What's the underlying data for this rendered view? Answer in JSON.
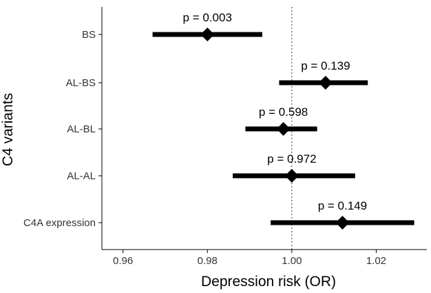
{
  "chart_data": {
    "type": "scatter",
    "subtype": "forest-plot",
    "title": "",
    "xlabel": "Depression risk (OR)",
    "ylabel": "C4 variants",
    "xlim": [
      0.955,
      1.032
    ],
    "x_ticks": [
      "0.96",
      "0.98",
      "1.00",
      "1.02"
    ],
    "reference_line": {
      "x": 1.0,
      "style": "dotted"
    },
    "grid": false,
    "categories": [
      "BS",
      "AL-BS",
      "AL-BL",
      "AL-AL",
      "C4A expression"
    ],
    "points": [
      {
        "label": "BS",
        "or": 0.98,
        "ci_low": 0.967,
        "ci_high": 0.993,
        "p": "p = 0.003"
      },
      {
        "label": "AL-BS",
        "or": 1.008,
        "ci_low": 0.997,
        "ci_high": 1.018,
        "p": "p = 0.139"
      },
      {
        "label": "AL-BL",
        "or": 0.998,
        "ci_low": 0.989,
        "ci_high": 1.006,
        "p": "p = 0.598"
      },
      {
        "label": "AL-AL",
        "or": 1.0,
        "ci_low": 0.986,
        "ci_high": 1.015,
        "p": "p = 0.972"
      },
      {
        "label": "C4A expression",
        "or": 1.012,
        "ci_low": 0.995,
        "ci_high": 1.029,
        "p": "p = 0.149"
      }
    ],
    "colors": {
      "marks": "#000000",
      "axis": "#000000",
      "tick_label": "#333333"
    }
  }
}
